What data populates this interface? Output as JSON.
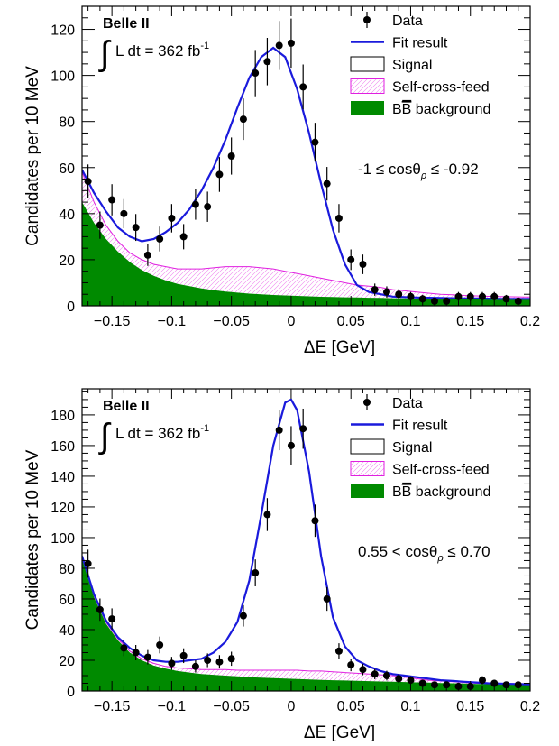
{
  "colors": {
    "data": "#000000",
    "fit": "#1a1adc",
    "signal": "#000000",
    "self_cross_feed": "#e020e0",
    "bb_background": "#008a00"
  },
  "chart_data": [
    {
      "type": "scatter",
      "experiment": "Belle II",
      "lumi_prefix": "L dt = 362 fb",
      "lumi_exp": "-1",
      "selection_pre": "-1 ≤ cosθ",
      "selection_sub": "ρ",
      "selection_post": " ≤ -0.92",
      "xlabel": "ΔE [GeV]",
      "ylabel": "Candidates per 10 MeV",
      "xlim": [
        -0.175,
        0.2
      ],
      "ylim": [
        0,
        130
      ],
      "xticks": [
        -0.15,
        -0.1,
        -0.05,
        0,
        0.05,
        0.1,
        0.15,
        0.2
      ],
      "xtick_labels": [
        "−0.15",
        "−0.1",
        "−0.05",
        "0",
        "0.05",
        "0.1",
        "0.15",
        "0.2"
      ],
      "yticks": [
        0,
        20,
        40,
        60,
        80,
        100,
        120
      ],
      "ytick_labels": [
        "0",
        "20",
        "40",
        "60",
        "80",
        "100",
        "120"
      ],
      "legend": [
        "Data",
        "Fit result",
        "Signal",
        "Self-cross-feed",
        "BB̄ background"
      ],
      "legend_bb_prefix": "B",
      "legend_bb_bar": "B",
      "legend_bb_suffix": " background",
      "series": [
        {
          "name": "Data",
          "x": [
            -0.17,
            -0.16,
            -0.15,
            -0.14,
            -0.13,
            -0.12,
            -0.11,
            -0.1,
            -0.09,
            -0.08,
            -0.07,
            -0.06,
            -0.05,
            -0.04,
            -0.03,
            -0.02,
            -0.01,
            0.0,
            0.01,
            0.02,
            0.03,
            0.04,
            0.05,
            0.06,
            0.07,
            0.08,
            0.09,
            0.1,
            0.11,
            0.12,
            0.13,
            0.14,
            0.15,
            0.16,
            0.17,
            0.18,
            0.19
          ],
          "y": [
            54,
            35,
            46,
            40,
            34,
            22,
            29,
            38,
            30,
            44,
            43,
            57,
            65,
            81,
            101,
            106,
            113,
            114,
            95,
            71,
            53,
            38,
            20,
            18,
            7,
            6,
            5,
            4,
            3,
            2,
            2,
            4,
            4,
            4,
            4,
            3,
            2
          ]
        },
        {
          "name": "Fit result",
          "x": [
            -0.175,
            -0.165,
            -0.155,
            -0.145,
            -0.135,
            -0.125,
            -0.115,
            -0.105,
            -0.095,
            -0.085,
            -0.075,
            -0.065,
            -0.055,
            -0.045,
            -0.035,
            -0.025,
            -0.015,
            -0.005,
            0.005,
            0.015,
            0.025,
            0.035,
            0.045,
            0.055,
            0.065,
            0.075,
            0.085,
            0.095,
            0.105,
            0.115,
            0.125,
            0.135,
            0.145,
            0.155,
            0.165,
            0.175,
            0.185,
            0.195,
            0.2
          ],
          "y": [
            59,
            49,
            41,
            34,
            30,
            28,
            29,
            32,
            36,
            42,
            50,
            60,
            72,
            86,
            99,
            108,
            112,
            108,
            94,
            75,
            53,
            33,
            18,
            9,
            6,
            5,
            4,
            3.8,
            3.6,
            3.5,
            3.4,
            3.3,
            3.2,
            3.2,
            3.1,
            3.0,
            3.0,
            3.0,
            3.0
          ]
        },
        {
          "name": "Self-cross-feed",
          "x": [
            -0.175,
            -0.165,
            -0.155,
            -0.145,
            -0.135,
            -0.125,
            -0.115,
            -0.105,
            -0.095,
            -0.085,
            -0.075,
            -0.065,
            -0.055,
            -0.045,
            -0.035,
            -0.025,
            -0.015,
            -0.005,
            0.005,
            0.015,
            0.025,
            0.035,
            0.045,
            0.055,
            0.065,
            0.075,
            0.085,
            0.095,
            0.105,
            0.115,
            0.125,
            0.135,
            0.145,
            0.155,
            0.165,
            0.175,
            0.185,
            0.195,
            0.2
          ],
          "y": [
            58,
            45,
            35,
            28,
            23,
            20,
            18,
            17,
            16,
            16,
            16,
            16.5,
            17,
            17,
            17,
            16.5,
            16,
            15,
            14,
            13,
            12,
            11,
            10,
            9,
            8.5,
            8,
            7,
            6.5,
            6,
            5.5,
            5,
            4.8,
            4.5,
            4.3,
            4.1,
            4.0,
            3.9,
            3.8,
            3.8
          ]
        },
        {
          "name": "BB̄ background",
          "x": [
            -0.175,
            -0.165,
            -0.155,
            -0.145,
            -0.135,
            -0.125,
            -0.115,
            -0.105,
            -0.095,
            -0.085,
            -0.075,
            -0.065,
            -0.055,
            -0.045,
            -0.035,
            -0.025,
            -0.015,
            -0.005,
            0.005,
            0.015,
            0.025,
            0.035,
            0.045,
            0.055,
            0.065,
            0.075,
            0.085,
            0.095,
            0.105,
            0.115,
            0.125,
            0.135,
            0.145,
            0.155,
            0.165,
            0.175,
            0.185,
            0.195,
            0.2
          ],
          "y": [
            45,
            36,
            29,
            23.5,
            19,
            15.5,
            13,
            11,
            9.5,
            8.5,
            7.5,
            6.8,
            6.2,
            5.7,
            5.3,
            5.0,
            4.7,
            4.5,
            4.3,
            4.1,
            3.9,
            3.8,
            3.7,
            3.6,
            3.5,
            3.4,
            3.3,
            3.2,
            3.1,
            3.1,
            3.0,
            3.0,
            3.0,
            2.9,
            2.9,
            2.9,
            2.8,
            2.8,
            2.8
          ]
        }
      ]
    },
    {
      "type": "scatter",
      "experiment": "Belle II",
      "lumi_prefix": "L dt = 362 fb",
      "lumi_exp": "-1",
      "selection_pre": "0.55 < cosθ",
      "selection_sub": "ρ",
      "selection_post": " ≤ 0.70",
      "xlabel": "ΔE [GeV]",
      "ylabel": "Candidates per 10 MeV",
      "xlim": [
        -0.175,
        0.2
      ],
      "ylim": [
        0,
        197
      ],
      "xticks": [
        -0.15,
        -0.1,
        -0.05,
        0,
        0.05,
        0.1,
        0.15,
        0.2
      ],
      "xtick_labels": [
        "−0.15",
        "−0.1",
        "−0.05",
        "0",
        "0.05",
        "0.1",
        "0.15",
        "0.2"
      ],
      "yticks": [
        0,
        20,
        40,
        60,
        80,
        100,
        120,
        140,
        160,
        180
      ],
      "ytick_labels": [
        "0",
        "20",
        "40",
        "60",
        "80",
        "100",
        "120",
        "140",
        "160",
        "180"
      ],
      "legend": [
        "Data",
        "Fit result",
        "Signal",
        "Self-cross-feed",
        "BB̄ background"
      ],
      "legend_bb_prefix": "B",
      "legend_bb_bar": "B",
      "legend_bb_suffix": " background",
      "series": [
        {
          "name": "Data",
          "x": [
            -0.17,
            -0.16,
            -0.15,
            -0.14,
            -0.13,
            -0.12,
            -0.11,
            -0.1,
            -0.09,
            -0.08,
            -0.07,
            -0.06,
            -0.05,
            -0.04,
            -0.03,
            -0.02,
            -0.01,
            0.0,
            0.01,
            0.02,
            0.03,
            0.04,
            0.05,
            0.06,
            0.07,
            0.08,
            0.09,
            0.1,
            0.11,
            0.12,
            0.13,
            0.14,
            0.15,
            0.16,
            0.17,
            0.18,
            0.19
          ],
          "y": [
            83,
            53,
            47,
            28,
            25,
            22,
            30,
            18,
            23,
            16,
            20,
            19,
            21,
            49,
            77,
            115,
            170,
            160,
            171,
            111,
            60,
            26,
            17,
            14,
            11,
            10,
            8,
            7,
            5,
            4,
            4,
            3,
            3,
            7,
            5,
            4,
            4
          ]
        },
        {
          "name": "Fit result",
          "x": [
            -0.175,
            -0.165,
            -0.155,
            -0.145,
            -0.135,
            -0.125,
            -0.115,
            -0.105,
            -0.095,
            -0.085,
            -0.075,
            -0.065,
            -0.055,
            -0.045,
            -0.035,
            -0.025,
            -0.015,
            -0.005,
            0.0,
            0.005,
            0.015,
            0.025,
            0.035,
            0.045,
            0.055,
            0.065,
            0.075,
            0.085,
            0.095,
            0.105,
            0.115,
            0.125,
            0.135,
            0.145,
            0.155,
            0.165,
            0.175,
            0.185,
            0.195,
            0.2
          ],
          "y": [
            88,
            63,
            46,
            35,
            28,
            23,
            20,
            19,
            19,
            20,
            21,
            25,
            32,
            45,
            72,
            115,
            160,
            188,
            190,
            183,
            143,
            88,
            48,
            29,
            20,
            16,
            13,
            11,
            10,
            9,
            8,
            7,
            6.5,
            6,
            5.5,
            5,
            4.8,
            4.6,
            4.4,
            4.3
          ]
        },
        {
          "name": "Self-cross-feed",
          "x": [
            -0.175,
            -0.165,
            -0.155,
            -0.145,
            -0.135,
            -0.125,
            -0.115,
            -0.105,
            -0.095,
            -0.085,
            -0.075,
            -0.065,
            -0.055,
            -0.045,
            -0.035,
            -0.025,
            -0.015,
            -0.005,
            0.005,
            0.015,
            0.025,
            0.035,
            0.045,
            0.055,
            0.065,
            0.075,
            0.085,
            0.095,
            0.105,
            0.115,
            0.125,
            0.135,
            0.145,
            0.155,
            0.165,
            0.175,
            0.185,
            0.195,
            0.2
          ],
          "y": [
            87,
            62,
            45,
            34,
            26,
            21,
            18,
            16,
            15,
            14.5,
            14,
            14,
            14,
            13.5,
            13.5,
            13.5,
            13.5,
            13.5,
            13.5,
            13,
            13,
            12.5,
            12,
            11.5,
            11,
            10.5,
            10,
            9,
            8,
            7,
            6.5,
            6,
            5.5,
            5,
            4.8,
            4.6,
            4.4,
            4.3,
            4.2
          ]
        },
        {
          "name": "BB̄ background",
          "x": [
            -0.175,
            -0.165,
            -0.155,
            -0.145,
            -0.135,
            -0.125,
            -0.115,
            -0.105,
            -0.095,
            -0.085,
            -0.075,
            -0.065,
            -0.055,
            -0.045,
            -0.035,
            -0.025,
            -0.015,
            -0.005,
            0.005,
            0.015,
            0.025,
            0.035,
            0.045,
            0.055,
            0.065,
            0.075,
            0.085,
            0.095,
            0.105,
            0.115,
            0.125,
            0.135,
            0.145,
            0.155,
            0.165,
            0.175,
            0.185,
            0.195,
            0.2
          ],
          "y": [
            86,
            61,
            44,
            33,
            25,
            20,
            16.5,
            14.5,
            13,
            12,
            11,
            10.5,
            10,
            9.5,
            9,
            8.7,
            8.4,
            8.1,
            7.8,
            7.5,
            7.2,
            7,
            6.8,
            6.6,
            6.4,
            6.2,
            6,
            5.8,
            5.6,
            5.4,
            5.2,
            5,
            4.8,
            4.6,
            4.5,
            4.4,
            4.3,
            4.2,
            4.1
          ]
        }
      ]
    }
  ]
}
